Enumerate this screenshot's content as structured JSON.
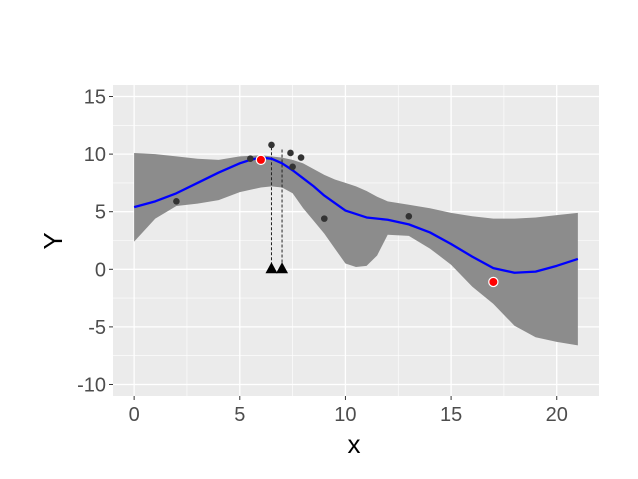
{
  "chart_data": {
    "type": "line",
    "title": "",
    "xlabel": "x",
    "ylabel": "Y",
    "xlim": [
      -1,
      22
    ],
    "ylim": [
      -11,
      16
    ],
    "x_ticks": [
      0,
      5,
      10,
      15,
      20
    ],
    "y_ticks": [
      -10,
      -5,
      0,
      5,
      10,
      15
    ],
    "grid": true,
    "legend": "none",
    "colors": {
      "panel": "#ebebeb",
      "grid": "#ffffff",
      "mean_line": "#0000ff",
      "band": "#8c8c8c",
      "observed": "#333333",
      "highlight": "#ff0000",
      "marker": "#000000"
    },
    "series": [
      {
        "type": "line",
        "x": [
          0,
          1,
          2,
          3,
          4,
          5,
          5.5,
          6,
          6.5,
          7,
          7.5,
          8,
          8.5,
          9,
          10,
          11,
          12,
          13,
          14,
          15,
          16,
          17,
          18,
          19,
          20,
          21
        ],
        "values": [
          5.4,
          5.9,
          6.6,
          7.5,
          8.4,
          9.2,
          9.5,
          9.7,
          9.6,
          9.2,
          8.6,
          7.9,
          7.2,
          6.4,
          5.1,
          4.5,
          4.3,
          3.9,
          3.2,
          2.2,
          1.1,
          0.1,
          -0.3,
          -0.2,
          0.3,
          0.9
        ]
      },
      {
        "type": "band",
        "x": [
          0,
          1,
          2,
          3,
          4,
          5,
          6,
          6.5,
          7,
          7.5,
          8,
          8.5,
          9,
          9.5,
          10,
          10.5,
          11,
          11.5,
          12,
          13,
          14,
          15,
          16,
          17,
          18,
          19,
          20,
          21
        ],
        "upper": [
          10.1,
          10.0,
          9.8,
          9.6,
          9.5,
          9.8,
          9.9,
          9.8,
          9.7,
          9.5,
          9.2,
          8.7,
          8.2,
          7.8,
          7.5,
          7.2,
          6.8,
          6.3,
          5.9,
          5.6,
          5.3,
          4.9,
          4.6,
          4.4,
          4.4,
          4.5,
          4.7,
          4.9
        ],
        "lower": [
          2.4,
          4.4,
          5.5,
          5.7,
          6.0,
          6.7,
          7.1,
          7.2,
          7.1,
          6.6,
          5.3,
          4.2,
          3.1,
          1.8,
          0.5,
          0.2,
          0.3,
          1.2,
          3.0,
          2.9,
          1.8,
          0.4,
          -1.5,
          -3.0,
          -4.9,
          -5.9,
          -6.3,
          -6.6
        ]
      },
      {
        "type": "scatter",
        "x": [
          2,
          5.5,
          6.5,
          7.4,
          7.5,
          7.9,
          9,
          13
        ],
        "values": [
          5.9,
          9.6,
          10.8,
          10.1,
          8.9,
          9.7,
          4.4,
          4.6
        ]
      },
      {
        "type": "highlight",
        "x": [
          6,
          17
        ],
        "values": [
          9.5,
          -1.1
        ]
      },
      {
        "type": "marker",
        "x": [
          6.5,
          7
        ],
        "values": [
          0,
          0
        ],
        "guide_top": [
          10.6,
          10.4
        ]
      }
    ]
  }
}
